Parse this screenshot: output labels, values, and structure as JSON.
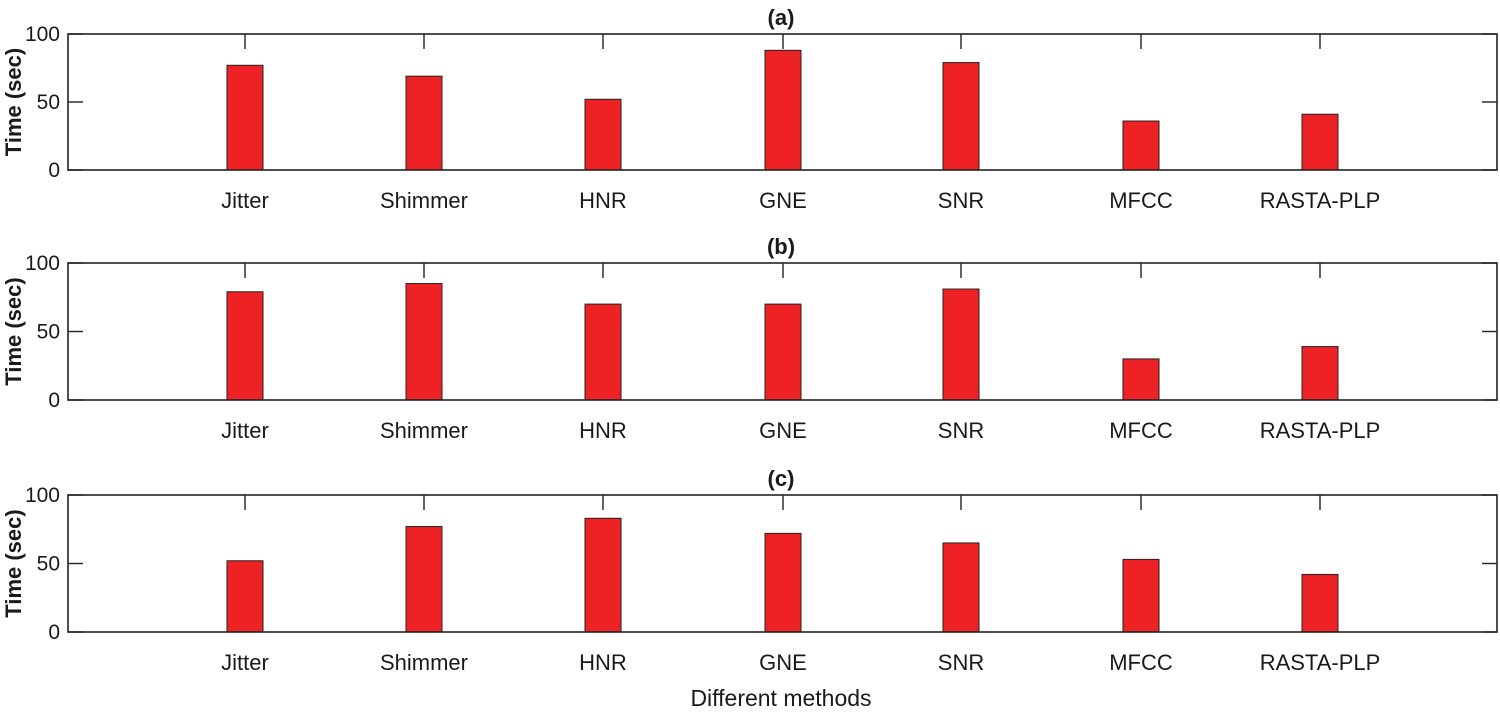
{
  "chart_data": [
    {
      "type": "bar",
      "title": "(a)",
      "ylabel": "Time (sec)",
      "categories": [
        "Jitter",
        "Shimmer",
        "HNR",
        "GNE",
        "SNR",
        "MFCC",
        "RASTA-PLP"
      ],
      "values": [
        77,
        69,
        52,
        88,
        79,
        36,
        41
      ],
      "ylim": [
        0,
        100
      ],
      "yticks": [
        "0",
        "50",
        "100"
      ],
      "grid": false,
      "color": "#ee2124"
    },
    {
      "type": "bar",
      "title": "(b)",
      "ylabel": "Time (sec)",
      "categories": [
        "Jitter",
        "Shimmer",
        "HNR",
        "GNE",
        "SNR",
        "MFCC",
        "RASTA-PLP"
      ],
      "values": [
        79,
        85,
        70,
        70,
        81,
        30,
        39
      ],
      "ylim": [
        0,
        100
      ],
      "yticks": [
        "0",
        "50",
        "100"
      ],
      "grid": false,
      "color": "#ee2124"
    },
    {
      "type": "bar",
      "title": "(c)",
      "ylabel": "Time (sec)",
      "xlabel": "Different methods",
      "categories": [
        "Jitter",
        "Shimmer",
        "HNR",
        "GNE",
        "SNR",
        "MFCC",
        "RASTA-PLP"
      ],
      "values": [
        52,
        77,
        83,
        72,
        65,
        53,
        42
      ],
      "ylim": [
        0,
        100
      ],
      "yticks": [
        "0",
        "50",
        "100"
      ],
      "grid": false,
      "color": "#ee2124"
    }
  ]
}
